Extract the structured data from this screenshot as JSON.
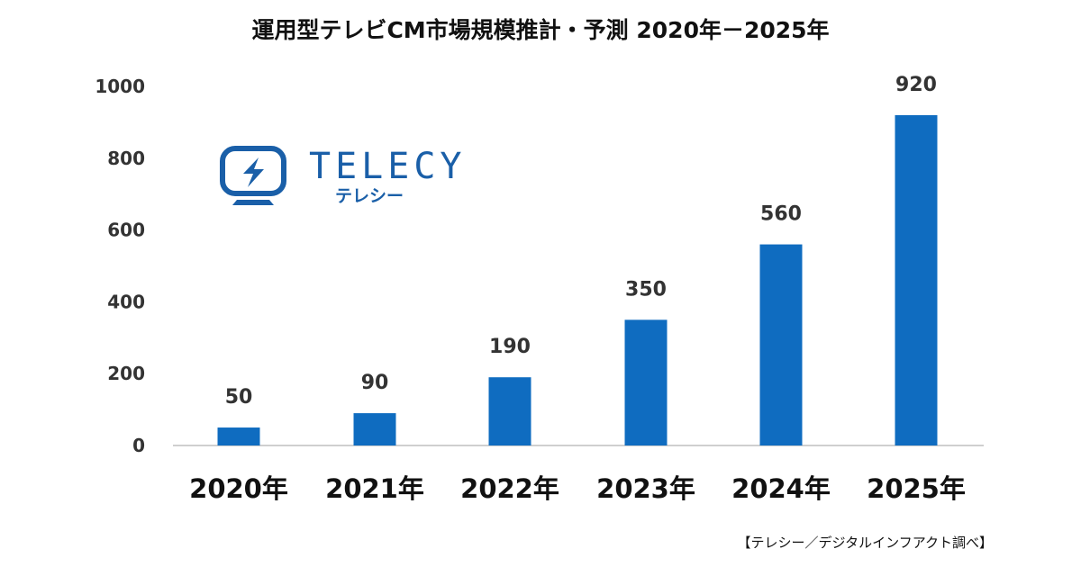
{
  "chart_data": {
    "type": "bar",
    "title": "運用型テレビCM市場規模推計・予測 2020年－2025年",
    "categories": [
      "2020年",
      "2021年",
      "2022年",
      "2023年",
      "2024年",
      "2025年"
    ],
    "values": [
      50,
      90,
      190,
      350,
      560,
      920
    ],
    "data_labels": [
      "50",
      "90",
      "190",
      "350",
      "560",
      "920"
    ],
    "ylim": [
      0,
      1000
    ],
    "yticks": [
      "0",
      "200",
      "400",
      "600",
      "800",
      "1000"
    ],
    "grid": false,
    "bar_color": "#0f6cc0",
    "xlabel": "",
    "ylabel": ""
  },
  "logo": {
    "wordmark": "TELECY",
    "subtext": "テレシー",
    "color": "#1a5fa8",
    "icon": "tv-lightning-icon"
  },
  "source_note": "【テレシー／デジタルインフアクト調べ】"
}
